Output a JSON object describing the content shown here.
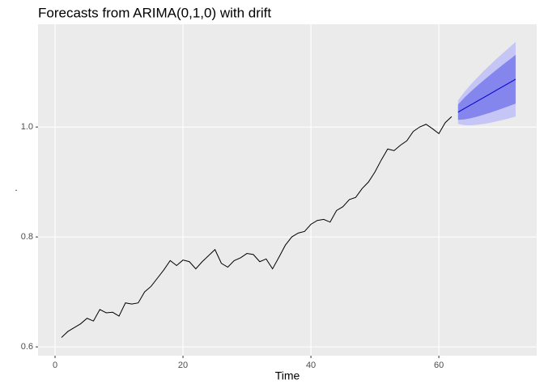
{
  "chart_data": {
    "type": "line",
    "title": "Forecasts from ARIMA(0,1,0) with drift",
    "x_label": "Time",
    "y_label": ".",
    "xlim": [
      -2.66,
      75.3
    ],
    "ylim": [
      0.584,
      1.187
    ],
    "xticks": [
      0,
      20,
      40,
      60
    ],
    "yticks": [
      0.6,
      0.8,
      {
        "value": 1,
        "label": "1.0"
      }
    ],
    "grid": true,
    "bands": [
      {
        "color": "#c6c6f6",
        "x": [
          63,
          64,
          65,
          66,
          67,
          68,
          69,
          70,
          71,
          72
        ],
        "lower": [
          1.0055,
          1.0033,
          1.0031,
          1.004,
          1.0056,
          1.0076,
          1.0101,
          1.0129,
          1.0158,
          1.019
        ],
        "upper": [
          1.0485,
          1.0641,
          1.0775,
          1.09,
          1.1018,
          1.113,
          1.1239,
          1.1345,
          1.1448,
          1.155
        ]
      },
      {
        "color": "#8585ee",
        "x": [
          63,
          64,
          65,
          66,
          67,
          68,
          69,
          70,
          71,
          72
        ],
        "lower": [
          1.013,
          1.0139,
          1.0161,
          1.019,
          1.0224,
          1.026,
          1.03,
          1.0341,
          1.0383,
          1.0427
        ],
        "upper": [
          1.041,
          1.0535,
          1.0645,
          1.075,
          1.085,
          1.0946,
          1.104,
          1.1133,
          1.1223,
          1.1313
        ]
      }
    ],
    "series": [
      {
        "color": "#000000",
        "x": [
          1,
          2,
          3,
          4,
          5,
          6,
          7,
          8,
          9,
          10,
          11,
          12,
          13,
          14,
          15,
          16,
          17,
          18,
          19,
          20,
          21,
          22,
          23,
          24,
          25,
          26,
          27,
          28,
          29,
          30,
          31,
          32,
          33,
          34,
          35,
          36,
          37,
          38,
          39,
          40,
          41,
          42,
          43,
          44,
          45,
          46,
          47,
          48,
          49,
          50,
          51,
          52,
          53,
          54,
          55,
          56,
          57,
          58,
          59,
          60,
          61,
          62
        ],
        "values": [
          0.617,
          0.628,
          0.635,
          0.642,
          0.652,
          0.647,
          0.668,
          0.662,
          0.663,
          0.656,
          0.68,
          0.678,
          0.68,
          0.7,
          0.71,
          0.725,
          0.74,
          0.757,
          0.748,
          0.758,
          0.755,
          0.742,
          0.755,
          0.766,
          0.777,
          0.752,
          0.745,
          0.757,
          0.762,
          0.77,
          0.768,
          0.755,
          0.76,
          0.742,
          0.763,
          0.785,
          0.8,
          0.807,
          0.81,
          0.823,
          0.83,
          0.832,
          0.827,
          0.848,
          0.855,
          0.868,
          0.872,
          0.888,
          0.9,
          0.918,
          0.94,
          0.96,
          0.957,
          0.967,
          0.975,
          0.992,
          1.0,
          1.005,
          0.997,
          0.988,
          1.008,
          1.019
        ]
      },
      {
        "color": "#0000cc",
        "x": [
          63,
          64,
          65,
          66,
          67,
          68,
          69,
          70,
          71,
          72
        ],
        "values": [
          1.027,
          1.0337,
          1.0403,
          1.047,
          1.0537,
          1.0603,
          1.067,
          1.0737,
          1.0803,
          1.087
        ]
      }
    ]
  }
}
